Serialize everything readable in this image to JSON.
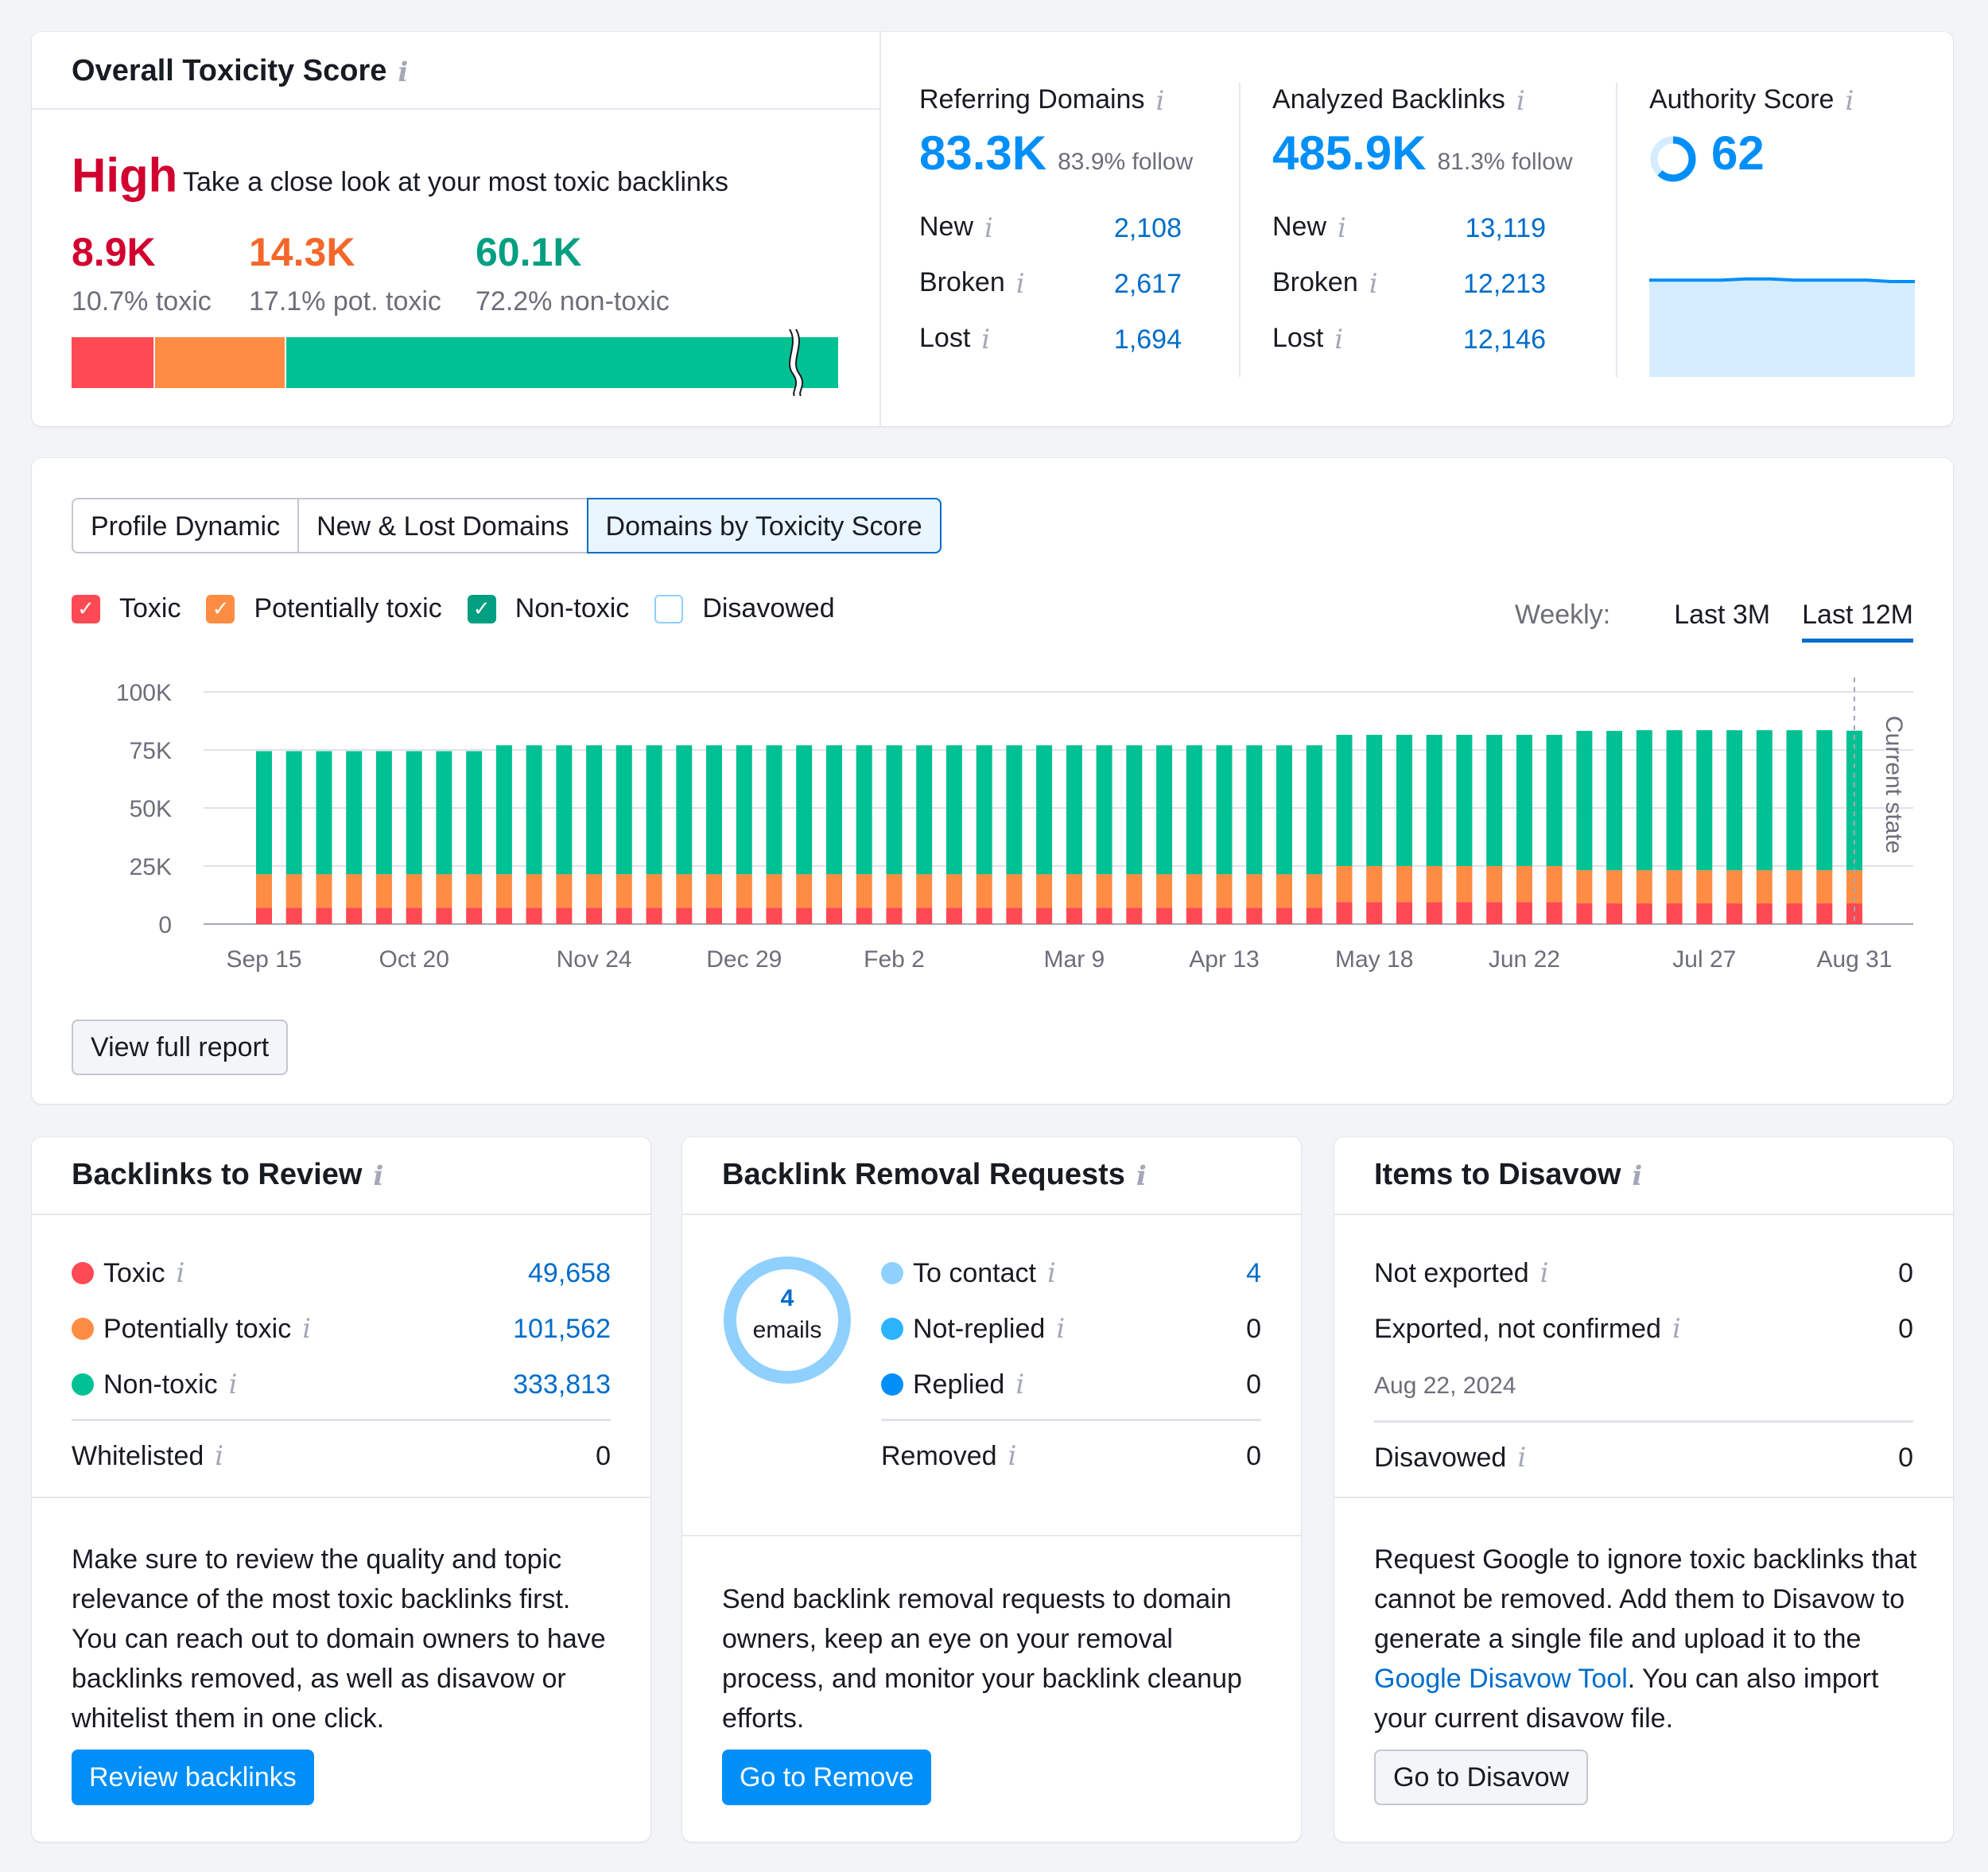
{
  "colors": {
    "toxic": "#ff4953",
    "potentially_toxic": "#ff8c43",
    "non_toxic": "#00c193",
    "accent": "#008ff8",
    "link": "#006dca",
    "high": "#d1002f"
  },
  "toxicity": {
    "title": "Overall Toxicity Score",
    "level": "High",
    "description": "Take a close look at your most toxic backlinks",
    "toxic": {
      "value": "8.9K",
      "label": "10.7% toxic",
      "share": 0.107
    },
    "pot_toxic": {
      "value": "14.3K",
      "label": "17.1% pot. toxic",
      "share": 0.171
    },
    "non_toxic": {
      "value": "60.1K",
      "label": "72.2% non-toxic",
      "share": 0.722
    }
  },
  "referring_domains": {
    "title": "Referring Domains",
    "value": "83.3K",
    "follow": "83.9% follow",
    "rows": [
      {
        "label": "New",
        "value": "2,108"
      },
      {
        "label": "Broken",
        "value": "2,617"
      },
      {
        "label": "Lost",
        "value": "1,694"
      }
    ]
  },
  "analyzed_backlinks": {
    "title": "Analyzed Backlinks",
    "value": "485.9K",
    "follow": "81.3% follow",
    "rows": [
      {
        "label": "New",
        "value": "13,119"
      },
      {
        "label": "Broken",
        "value": "12,213"
      },
      {
        "label": "Lost",
        "value": "12,146"
      }
    ]
  },
  "authority": {
    "title": "Authority Score",
    "value": "62",
    "trend": [
      62,
      62,
      62,
      62,
      63,
      63,
      62,
      62,
      62,
      62,
      61,
      61
    ]
  },
  "tabs": [
    "Profile Dynamic",
    "New & Lost Domains",
    "Domains by Toxicity Score"
  ],
  "legend": {
    "toxic": "Toxic",
    "pot_toxic": "Potentially toxic",
    "non_toxic": "Non-toxic",
    "disavowed": "Disavowed"
  },
  "period": {
    "label": "Weekly:",
    "options": [
      "Last 3M",
      "Last 12M"
    ],
    "active": "Last 12M"
  },
  "chart_data": {
    "type": "bar",
    "stacked": true,
    "y_ticks": [
      "100K",
      "75K",
      "50K",
      "25K",
      "0"
    ],
    "ylim": [
      0,
      100000
    ],
    "x_tick_labels": [
      "Sep 15",
      "Oct 20",
      "Nov 24",
      "Dec 29",
      "Feb 2",
      "Mar 9",
      "Apr 13",
      "May 18",
      "Jun 22",
      "Jul 27",
      "Aug 31"
    ],
    "current_state_label": "Current state",
    "series": [
      {
        "name": "Toxic",
        "values": [
          7000,
          7000,
          7000,
          7000,
          7000,
          7000,
          7000,
          7000,
          7000,
          7000,
          7000,
          7000,
          7000,
          7000,
          7000,
          7000,
          7000,
          7000,
          7000,
          7000,
          7000,
          7000,
          7000,
          7000,
          7000,
          7000,
          7000,
          7000,
          7000,
          7000,
          7000,
          7000,
          7000,
          7000,
          7000,
          7000,
          9500,
          9500,
          9500,
          9500,
          9500,
          9500,
          9500,
          9500,
          8900,
          8900,
          8900,
          8900,
          8900,
          8900,
          8900,
          8900,
          8900,
          8900
        ]
      },
      {
        "name": "Potentially toxic",
        "values": [
          14500,
          14500,
          14500,
          14500,
          14500,
          14500,
          14500,
          14500,
          14500,
          14500,
          14500,
          14500,
          14500,
          14500,
          14500,
          14500,
          14500,
          14500,
          14500,
          14500,
          14500,
          14500,
          14500,
          14500,
          14500,
          14500,
          14500,
          14500,
          14500,
          14500,
          14500,
          14500,
          14500,
          14500,
          14500,
          14500,
          15500,
          15500,
          15500,
          15500,
          15500,
          15500,
          15500,
          15500,
          14300,
          14300,
          14300,
          14300,
          14300,
          14300,
          14300,
          14300,
          14300,
          14300
        ]
      },
      {
        "name": "Non-toxic",
        "values": [
          53000,
          53000,
          53000,
          53000,
          53000,
          53000,
          53000,
          53000,
          55500,
          55500,
          55500,
          55500,
          55500,
          55500,
          55500,
          55500,
          55500,
          55500,
          55500,
          55500,
          55500,
          55500,
          55500,
          55500,
          55500,
          55500,
          55500,
          55500,
          55500,
          55500,
          55500,
          55500,
          55500,
          55500,
          55500,
          55500,
          56500,
          56500,
          56500,
          56500,
          56500,
          56500,
          56500,
          56500,
          60000,
          60000,
          60300,
          60300,
          60300,
          60300,
          60300,
          60300,
          60300,
          60100
        ]
      }
    ]
  },
  "view_full_report": "View full report",
  "review": {
    "title": "Backlinks to Review",
    "rows": [
      {
        "label": "Toxic",
        "value": "49,658"
      },
      {
        "label": "Potentially toxic",
        "value": "101,562"
      },
      {
        "label": "Non-toxic",
        "value": "333,813"
      }
    ],
    "whitelisted": {
      "label": "Whitelisted",
      "value": "0"
    },
    "description": "Make sure to review the quality and topic relevance of the most toxic backlinks first. You can reach out to domain owners to have backlinks removed, as well as disavow or whitelist them in one click.",
    "button": "Review backlinks"
  },
  "removal": {
    "title": "Backlink Removal Requests",
    "donut_count": "4",
    "donut_unit": "emails",
    "rows": [
      {
        "label": "To contact",
        "value": "4",
        "color": "#8fd0ff"
      },
      {
        "label": "Not-replied",
        "value": "0",
        "color": "#2bb3ff"
      },
      {
        "label": "Replied",
        "value": "0",
        "color": "#008ff8"
      }
    ],
    "removed": {
      "label": "Removed",
      "value": "0"
    },
    "description": "Send backlink removal requests to domain owners, keep an eye on your removal process, and monitor your backlink cleanup efforts.",
    "button": "Go to Remove"
  },
  "disavow": {
    "title": "Items to Disavow",
    "rows": [
      {
        "label": "Not exported",
        "value": "0"
      },
      {
        "label": "Exported, not confirmed",
        "value": "0"
      }
    ],
    "date": "Aug 22, 2024",
    "disavowed": {
      "label": "Disavowed",
      "value": "0"
    },
    "desc_part1": "Request Google to ignore toxic backlinks that cannot be removed. Add them to Disavow to generate a single file and upload it to the ",
    "desc_link": "Google Disavow Tool",
    "desc_part2": ". You can also import your current disavow file.",
    "button": "Go to Disavow"
  }
}
